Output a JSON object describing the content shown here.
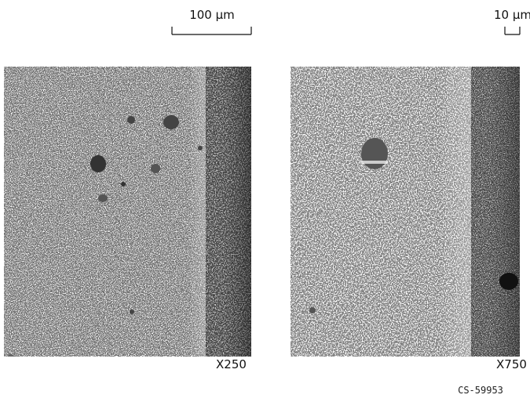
{
  "panels": [
    {
      "scale_bar": "100 µm",
      "magnification": "X250"
    },
    {
      "scale_bar": "10 µm",
      "magnification": "X750"
    }
  ],
  "figure_id": "CS-59953"
}
